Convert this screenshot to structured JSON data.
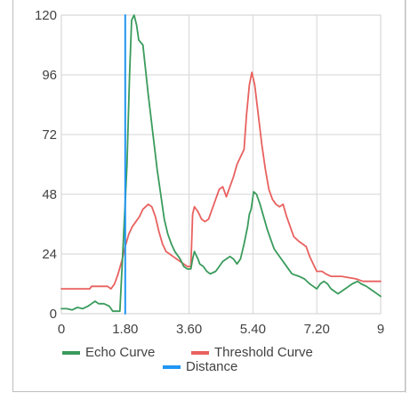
{
  "chart_data": {
    "type": "line",
    "xlim": [
      0,
      9
    ],
    "ylim": [
      0,
      120
    ],
    "x_ticks": [
      "0",
      "1.80",
      "3.60",
      "5.40",
      "7.20",
      "9"
    ],
    "y_ticks": [
      "0",
      "24",
      "48",
      "72",
      "96",
      "120"
    ],
    "grid": true,
    "legend_position": "bottom",
    "series": [
      {
        "name": "Echo Curve",
        "color": "#3a9b5c",
        "points": [
          [
            0,
            2
          ],
          [
            0.15,
            2
          ],
          [
            0.3,
            1.5
          ],
          [
            0.45,
            2.5
          ],
          [
            0.6,
            2
          ],
          [
            0.75,
            3
          ],
          [
            0.85,
            4
          ],
          [
            0.95,
            5
          ],
          [
            1.05,
            4
          ],
          [
            1.2,
            4
          ],
          [
            1.35,
            3
          ],
          [
            1.45,
            1
          ],
          [
            1.65,
            1
          ],
          [
            1.75,
            30
          ],
          [
            1.85,
            60
          ],
          [
            1.92,
            95
          ],
          [
            1.98,
            118
          ],
          [
            2.05,
            120
          ],
          [
            2.12,
            116
          ],
          [
            2.18,
            110
          ],
          [
            2.3,
            108
          ],
          [
            2.45,
            88
          ],
          [
            2.6,
            70
          ],
          [
            2.7,
            58
          ],
          [
            2.8,
            48
          ],
          [
            2.9,
            38
          ],
          [
            3.0,
            32
          ],
          [
            3.1,
            28
          ],
          [
            3.2,
            25
          ],
          [
            3.35,
            22
          ],
          [
            3.45,
            19
          ],
          [
            3.55,
            18
          ],
          [
            3.65,
            18
          ],
          [
            3.7,
            22
          ],
          [
            3.75,
            25
          ],
          [
            3.85,
            22
          ],
          [
            3.9,
            20
          ],
          [
            4.0,
            19
          ],
          [
            4.1,
            17
          ],
          [
            4.2,
            16
          ],
          [
            4.35,
            17
          ],
          [
            4.45,
            19
          ],
          [
            4.55,
            21
          ],
          [
            4.65,
            22
          ],
          [
            4.75,
            23
          ],
          [
            4.85,
            22
          ],
          [
            4.95,
            20
          ],
          [
            5.05,
            22
          ],
          [
            5.15,
            28
          ],
          [
            5.25,
            35
          ],
          [
            5.3,
            40
          ],
          [
            5.35,
            42
          ],
          [
            5.42,
            49
          ],
          [
            5.5,
            48
          ],
          [
            5.6,
            44
          ],
          [
            5.7,
            39
          ],
          [
            5.8,
            34
          ],
          [
            5.9,
            30
          ],
          [
            6.0,
            26
          ],
          [
            6.1,
            24
          ],
          [
            6.2,
            22
          ],
          [
            6.3,
            20
          ],
          [
            6.4,
            18
          ],
          [
            6.5,
            16
          ],
          [
            6.7,
            15
          ],
          [
            6.85,
            14
          ],
          [
            7.0,
            12
          ],
          [
            7.1,
            11
          ],
          [
            7.2,
            10
          ],
          [
            7.3,
            12
          ],
          [
            7.4,
            13
          ],
          [
            7.5,
            12
          ],
          [
            7.6,
            10
          ],
          [
            7.7,
            9
          ],
          [
            7.8,
            8
          ],
          [
            7.9,
            9
          ],
          [
            8.0,
            10
          ],
          [
            8.1,
            11
          ],
          [
            8.2,
            12
          ],
          [
            8.35,
            13
          ],
          [
            8.45,
            12
          ],
          [
            8.6,
            11
          ],
          [
            8.7,
            10
          ],
          [
            8.8,
            9
          ],
          [
            8.9,
            8
          ],
          [
            9.0,
            7
          ]
        ]
      },
      {
        "name": "Threshold Curve",
        "color": "#e8615f",
        "points": [
          [
            0,
            10
          ],
          [
            0.8,
            10
          ],
          [
            0.85,
            11
          ],
          [
            1.3,
            11
          ],
          [
            1.4,
            10
          ],
          [
            1.5,
            12
          ],
          [
            1.6,
            16
          ],
          [
            1.7,
            21
          ],
          [
            1.8,
            27
          ],
          [
            1.9,
            32
          ],
          [
            2.0,
            35
          ],
          [
            2.1,
            37
          ],
          [
            2.2,
            39
          ],
          [
            2.3,
            42
          ],
          [
            2.45,
            44
          ],
          [
            2.55,
            43
          ],
          [
            2.65,
            39
          ],
          [
            2.75,
            33
          ],
          [
            2.85,
            28
          ],
          [
            2.95,
            25
          ],
          [
            3.05,
            24
          ],
          [
            3.15,
            23
          ],
          [
            3.25,
            22
          ],
          [
            3.35,
            21
          ],
          [
            3.45,
            20
          ],
          [
            3.55,
            19
          ],
          [
            3.65,
            19
          ],
          [
            3.7,
            40
          ],
          [
            3.75,
            43
          ],
          [
            3.85,
            41
          ],
          [
            3.95,
            38
          ],
          [
            4.05,
            37
          ],
          [
            4.15,
            38
          ],
          [
            4.25,
            42
          ],
          [
            4.35,
            46
          ],
          [
            4.45,
            50
          ],
          [
            4.55,
            51
          ],
          [
            4.65,
            47
          ],
          [
            4.75,
            51
          ],
          [
            4.85,
            55
          ],
          [
            4.95,
            60
          ],
          [
            5.05,
            63
          ],
          [
            5.15,
            66
          ],
          [
            5.22,
            80
          ],
          [
            5.3,
            92
          ],
          [
            5.37,
            97
          ],
          [
            5.45,
            92
          ],
          [
            5.55,
            80
          ],
          [
            5.65,
            68
          ],
          [
            5.75,
            58
          ],
          [
            5.85,
            50
          ],
          [
            5.95,
            46
          ],
          [
            6.05,
            44
          ],
          [
            6.15,
            43
          ],
          [
            6.25,
            44
          ],
          [
            6.35,
            39
          ],
          [
            6.45,
            35
          ],
          [
            6.55,
            31
          ],
          [
            6.7,
            29
          ],
          [
            6.9,
            27
          ],
          [
            7.0,
            23
          ],
          [
            7.1,
            20
          ],
          [
            7.2,
            17
          ],
          [
            7.35,
            17
          ],
          [
            7.45,
            16
          ],
          [
            7.6,
            15
          ],
          [
            7.9,
            15
          ],
          [
            8.3,
            14
          ],
          [
            8.5,
            13
          ],
          [
            9.0,
            13
          ]
        ]
      },
      {
        "name": "Distance",
        "color": "#2196f3",
        "points": [
          [
            1.8,
            0
          ],
          [
            1.8,
            120
          ]
        ]
      }
    ]
  }
}
